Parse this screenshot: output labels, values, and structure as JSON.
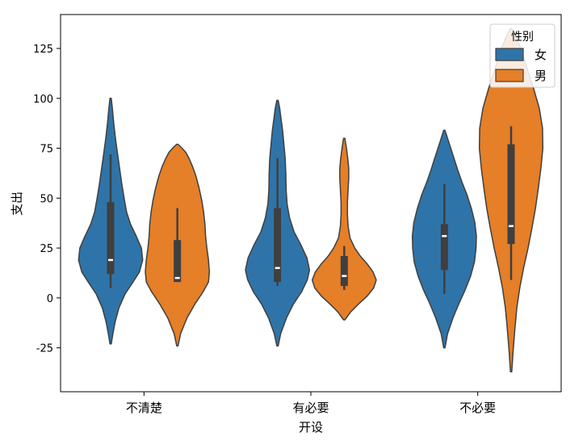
{
  "chart_data": {
    "type": "violin",
    "xlabel": "开设",
    "ylabel": "支出",
    "categories": [
      "不清楚",
      "有必要",
      "不必要"
    ],
    "ylim": [
      -47,
      142
    ],
    "yticks": [
      -25,
      0,
      25,
      50,
      75,
      100,
      125
    ],
    "grid": false,
    "legend": {
      "title": "性别",
      "placement": "top-right"
    },
    "series": [
      {
        "name": "女",
        "color": "#2f74a8",
        "violins": [
          {
            "category": "不清楚",
            "min": 5,
            "q1": 12,
            "median": 19,
            "q3": 48,
            "max": 72,
            "range": [
              -23,
              100
            ],
            "profile": [
              [
                -23,
                0.02
              ],
              [
                -18,
                0.07
              ],
              [
                -12,
                0.14
              ],
              [
                -5,
                0.26
              ],
              [
                2,
                0.45
              ],
              [
                8,
                0.7
              ],
              [
                13,
                0.9
              ],
              [
                19,
                1.0
              ],
              [
                25,
                0.96
              ],
              [
                31,
                0.8
              ],
              [
                37,
                0.62
              ],
              [
                43,
                0.5
              ],
              [
                50,
                0.42
              ],
              [
                57,
                0.35
              ],
              [
                65,
                0.28
              ],
              [
                73,
                0.21
              ],
              [
                80,
                0.15
              ],
              [
                87,
                0.1
              ],
              [
                94,
                0.06
              ],
              [
                100,
                0.02
              ]
            ]
          },
          {
            "category": "有必要",
            "min": 6,
            "q1": 8,
            "median": 15,
            "q3": 45,
            "max": 70,
            "range": [
              -24,
              99
            ],
            "profile": [
              [
                -24,
                0.02
              ],
              [
                -18,
                0.1
              ],
              [
                -10,
                0.28
              ],
              [
                -3,
                0.5
              ],
              [
                3,
                0.75
              ],
              [
                9,
                0.93
              ],
              [
                14,
                1.0
              ],
              [
                20,
                0.92
              ],
              [
                27,
                0.72
              ],
              [
                33,
                0.52
              ],
              [
                40,
                0.38
              ],
              [
                47,
                0.3
              ],
              [
                54,
                0.27
              ],
              [
                62,
                0.26
              ],
              [
                70,
                0.24
              ],
              [
                77,
                0.2
              ],
              [
                84,
                0.16
              ],
              [
                90,
                0.11
              ],
              [
                95,
                0.07
              ],
              [
                99,
                0.02
              ]
            ]
          },
          {
            "category": "不必要",
            "min": 2,
            "q1": 14,
            "median": 31,
            "q3": 37,
            "max": 57,
            "range": [
              -25,
              84
            ],
            "profile": [
              [
                -25,
                0.02
              ],
              [
                -18,
                0.1
              ],
              [
                -10,
                0.27
              ],
              [
                -3,
                0.45
              ],
              [
                4,
                0.65
              ],
              [
                11,
                0.82
              ],
              [
                18,
                0.94
              ],
              [
                25,
                0.99
              ],
              [
                31,
                1.0
              ],
              [
                38,
                0.95
              ],
              [
                45,
                0.84
              ],
              [
                52,
                0.7
              ],
              [
                58,
                0.55
              ],
              [
                64,
                0.42
              ],
              [
                70,
                0.3
              ],
              [
                75,
                0.2
              ],
              [
                80,
                0.1
              ],
              [
                84,
                0.02
              ]
            ]
          }
        ]
      },
      {
        "name": "男",
        "color": "#e57f28",
        "violins": [
          {
            "category": "不清楚",
            "min": 8,
            "q1": 8,
            "median": 10,
            "q3": 29,
            "max": 45,
            "range": [
              -24,
              77
            ],
            "profile": [
              [
                -24,
                0.02
              ],
              [
                -18,
                0.1
              ],
              [
                -10,
                0.3
              ],
              [
                -3,
                0.55
              ],
              [
                3,
                0.8
              ],
              [
                8,
                0.97
              ],
              [
                13,
                1.0
              ],
              [
                19,
                0.97
              ],
              [
                25,
                0.92
              ],
              [
                31,
                0.88
              ],
              [
                37,
                0.86
              ],
              [
                43,
                0.82
              ],
              [
                49,
                0.76
              ],
              [
                55,
                0.68
              ],
              [
                61,
                0.58
              ],
              [
                66,
                0.47
              ],
              [
                70,
                0.36
              ],
              [
                73,
                0.26
              ],
              [
                75,
                0.15
              ],
              [
                77,
                0.02
              ]
            ]
          },
          {
            "category": "有必要",
            "min": 4,
            "q1": 6,
            "median": 11,
            "q3": 21,
            "max": 26,
            "range": [
              -11,
              80
            ],
            "profile": [
              [
                -11,
                0.02
              ],
              [
                -7,
                0.2
              ],
              [
                -3,
                0.45
              ],
              [
                1,
                0.72
              ],
              [
                5,
                0.92
              ],
              [
                9,
                1.0
              ],
              [
                13,
                0.9
              ],
              [
                17,
                0.72
              ],
              [
                21,
                0.5
              ],
              [
                25,
                0.33
              ],
              [
                30,
                0.18
              ],
              [
                36,
                0.12
              ],
              [
                42,
                0.1
              ],
              [
                48,
                0.1
              ],
              [
                54,
                0.12
              ],
              [
                60,
                0.14
              ],
              [
                65,
                0.14
              ],
              [
                70,
                0.11
              ],
              [
                75,
                0.07
              ],
              [
                80,
                0.02
              ]
            ]
          },
          {
            "category": "不必要",
            "min": 9,
            "q1": 27,
            "median": 36,
            "q3": 77,
            "max": 86,
            "range": [
              -37,
              135
            ],
            "profile": [
              [
                -37,
                0.02
              ],
              [
                -27,
                0.06
              ],
              [
                -15,
                0.12
              ],
              [
                -5,
                0.18
              ],
              [
                5,
                0.27
              ],
              [
                15,
                0.39
              ],
              [
                25,
                0.53
              ],
              [
                35,
                0.65
              ],
              [
                45,
                0.76
              ],
              [
                55,
                0.85
              ],
              [
                65,
                0.93
              ],
              [
                75,
                0.99
              ],
              [
                85,
                0.98
              ],
              [
                95,
                0.88
              ],
              [
                105,
                0.7
              ],
              [
                115,
                0.5
              ],
              [
                125,
                0.3
              ],
              [
                130,
                0.18
              ],
              [
                135,
                0.02
              ]
            ]
          }
        ]
      }
    ]
  }
}
